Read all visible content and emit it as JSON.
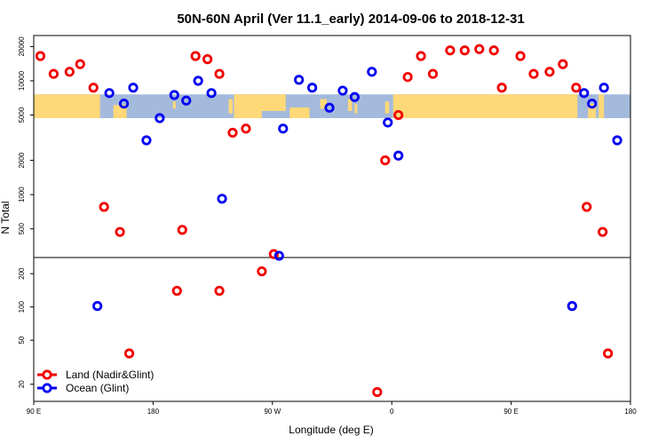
{
  "chart_data": {
    "type": "scatter",
    "title": "50N-60N April (Ver 11.1_early)   2014-09-06 to 2018-12-31",
    "xlabel": "Longitude (deg E)",
    "ylabel": "N Total",
    "x_ticks": [
      {
        "lon": 90,
        "label": "90 E"
      },
      {
        "lon": 180,
        "label": "180"
      },
      {
        "lon": 270,
        "label": "90 W"
      },
      {
        "lon": 360,
        "label": "0"
      },
      {
        "lon": 450,
        "label": "90 E"
      },
      {
        "lon": 540,
        "label": "180"
      }
    ],
    "xlim": [
      90,
      540
    ],
    "upper_panel": {
      "scale": "log",
      "ylim": [
        280,
        25000
      ],
      "y_ticks": [
        500,
        1000,
        2000,
        5000,
        10000,
        20000
      ]
    },
    "lower_panel": {
      "scale": "log",
      "ylim": [
        14,
        280
      ],
      "y_ticks": [
        20,
        50,
        100,
        200
      ]
    },
    "map_strip": {
      "y_range": [
        4700,
        7600
      ],
      "land_color": "#FFD878",
      "ocean_color": "#A4BADC"
    },
    "series": [
      {
        "name": "Land (Nadir&Glint)",
        "color": "#F20000",
        "points": [
          [
            95,
            16500
          ],
          [
            105,
            11500
          ],
          [
            117,
            12000
          ],
          [
            125,
            14000
          ],
          [
            135,
            8700
          ],
          [
            143,
            780
          ],
          [
            155,
            470
          ],
          [
            162,
            38
          ],
          [
            198,
            140
          ],
          [
            202,
            490
          ],
          [
            212,
            16500
          ],
          [
            221,
            15500
          ],
          [
            230,
            11500
          ],
          [
            230,
            140
          ],
          [
            240,
            3500
          ],
          [
            250,
            3800
          ],
          [
            262,
            210
          ],
          [
            271,
            300
          ],
          [
            349,
            17
          ],
          [
            355,
            2000
          ],
          [
            365,
            5000
          ],
          [
            372,
            10800
          ],
          [
            382,
            16500
          ],
          [
            391,
            11500
          ],
          [
            404,
            18500
          ],
          [
            415,
            18500
          ],
          [
            426,
            19000
          ],
          [
            437,
            18500
          ],
          [
            443,
            8700
          ],
          [
            457,
            16500
          ],
          [
            467,
            11500
          ],
          [
            479,
            12000
          ],
          [
            489,
            14000
          ],
          [
            499,
            8700
          ],
          [
            507,
            780
          ],
          [
            519,
            470
          ],
          [
            523,
            38
          ]
        ]
      },
      {
        "name": "Ocean (Glint)",
        "color": "#0000F2",
        "points": [
          [
            138,
            102
          ],
          [
            147,
            7800
          ],
          [
            158,
            6300
          ],
          [
            165,
            8700
          ],
          [
            175,
            3000
          ],
          [
            185,
            4700
          ],
          [
            196,
            7500
          ],
          [
            205,
            6700
          ],
          [
            214,
            10000
          ],
          [
            224,
            7800
          ],
          [
            232,
            920
          ],
          [
            275,
            290
          ],
          [
            278,
            3800
          ],
          [
            290,
            10200
          ],
          [
            300,
            8700
          ],
          [
            313,
            5800
          ],
          [
            323,
            8200
          ],
          [
            332,
            7200
          ],
          [
            345,
            12000
          ],
          [
            357,
            4300
          ],
          [
            365,
            2200
          ],
          [
            496,
            102
          ],
          [
            505,
            7800
          ],
          [
            511,
            6300
          ],
          [
            520,
            8700
          ],
          [
            530,
            3000
          ]
        ]
      }
    ],
    "legend_position": "bottom-left"
  }
}
